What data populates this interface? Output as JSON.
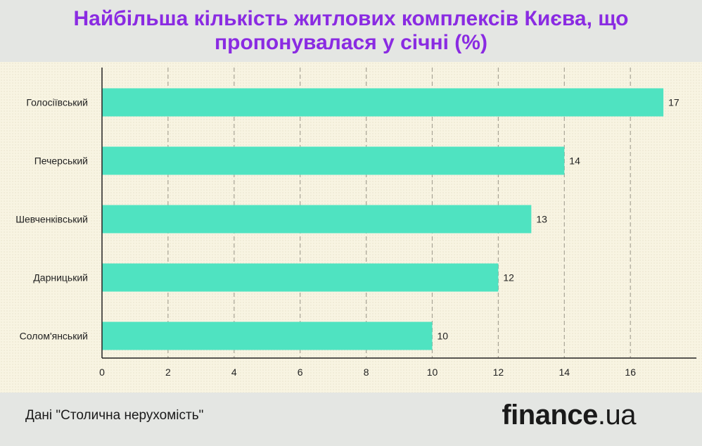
{
  "chart_data": {
    "type": "bar",
    "orientation": "horizontal",
    "title": "Найбільша кількість житлових комплексів Києва, що пропонувалася у січні (%)",
    "categories": [
      "Голосіївський",
      "Печерський",
      "Шевченківський",
      "Дарницький",
      "Солом'янський"
    ],
    "values": [
      17,
      14,
      13,
      12,
      10
    ],
    "xlim": [
      0,
      18
    ],
    "x_ticks": [
      0,
      2,
      4,
      6,
      8,
      10,
      12,
      14,
      16
    ],
    "grid": true,
    "data_labels": true,
    "bar_color": "#4fe3c1"
  },
  "footer": {
    "source": "Дані \"Столична нерухомість\"",
    "logo_main": "finance",
    "logo_tld": ".ua"
  },
  "colors": {
    "title": "#8a2be2",
    "background": "#e4e6e3",
    "plot_background": "#f8f4e2",
    "grid": "#a8a496",
    "axis": "#222222"
  }
}
